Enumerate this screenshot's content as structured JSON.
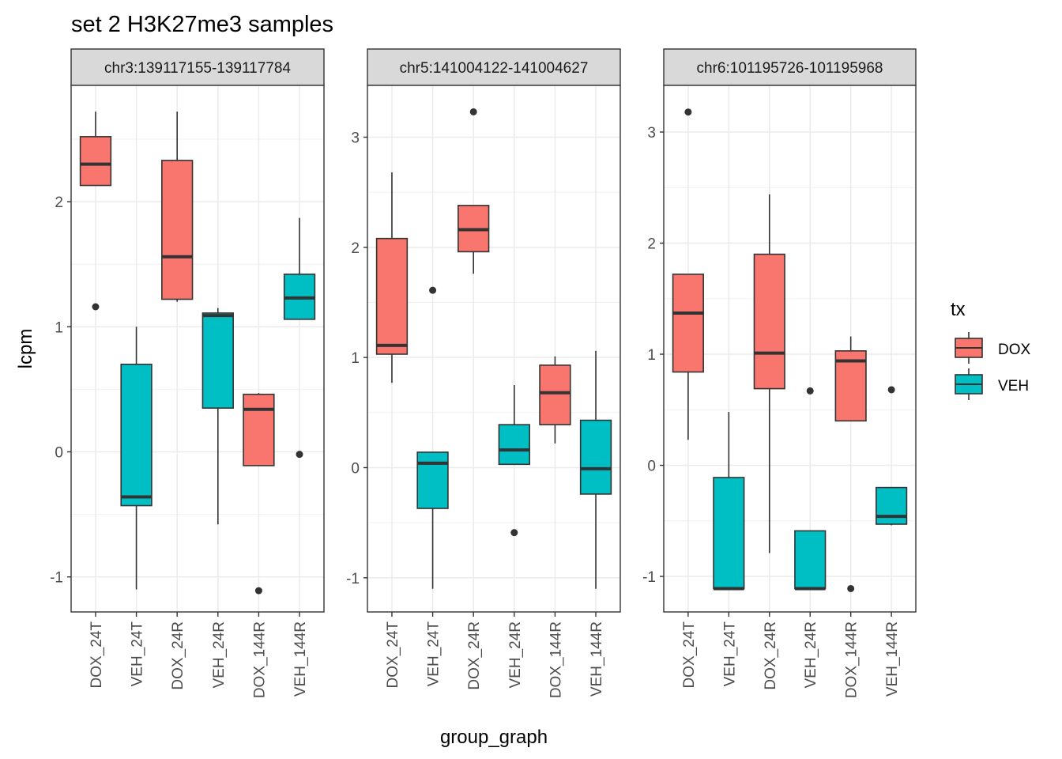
{
  "chart_data": {
    "type": "boxplot",
    "title": "set 2 H3K27me3 samples",
    "xlabel": "group_graph",
    "ylabel": "lcpm",
    "categories": [
      "DOX_24T",
      "VEH_24T",
      "DOX_24R",
      "VEH_24R",
      "DOX_144R",
      "VEH_144R"
    ],
    "fill_by": [
      "DOX",
      "VEH",
      "DOX",
      "VEH",
      "DOX",
      "VEH"
    ],
    "grid": true,
    "legend": {
      "title": "tx",
      "position": "right",
      "entries": [
        {
          "label": "DOX",
          "color": "#F8766D"
        },
        {
          "label": "VEH",
          "color": "#00BFC4"
        }
      ]
    },
    "panels": [
      {
        "strip": "chr3:139117155-139117784",
        "ylim": [
          -1.28,
          2.93
        ],
        "yticks": [
          -1,
          0,
          1,
          2
        ],
        "boxes": [
          {
            "group": "DOX_24T",
            "lower": 2.13,
            "q1": 2.13,
            "median": 2.3,
            "q3": 2.52,
            "upper": 2.72,
            "outliers": [
              1.16
            ]
          },
          {
            "group": "VEH_24T",
            "lower": -1.1,
            "q1": -0.43,
            "median": -0.36,
            "q3": 0.7,
            "upper": 1.0,
            "outliers": []
          },
          {
            "group": "DOX_24R",
            "lower": 1.2,
            "q1": 1.22,
            "median": 1.56,
            "q3": 2.33,
            "upper": 2.72,
            "outliers": []
          },
          {
            "group": "VEH_24R",
            "lower": -0.58,
            "q1": 0.35,
            "median": 1.09,
            "q3": 1.11,
            "upper": 1.15,
            "outliers": []
          },
          {
            "group": "DOX_144R",
            "lower": -0.11,
            "q1": -0.11,
            "median": 0.34,
            "q3": 0.46,
            "upper": 0.47,
            "outliers": [
              -1.11
            ]
          },
          {
            "group": "VEH_144R",
            "lower": 1.06,
            "q1": 1.06,
            "median": 1.23,
            "q3": 1.42,
            "upper": 1.87,
            "outliers": [
              -0.02
            ]
          }
        ]
      },
      {
        "strip": "chr5:141004122-141004627",
        "ylim": [
          -1.31,
          3.47
        ],
        "yticks": [
          -1,
          0,
          1,
          2,
          3
        ],
        "boxes": [
          {
            "group": "DOX_24T",
            "lower": 0.77,
            "q1": 1.03,
            "median": 1.11,
            "q3": 2.08,
            "upper": 2.68,
            "outliers": []
          },
          {
            "group": "VEH_24T",
            "lower": -1.1,
            "q1": -0.37,
            "median": 0.04,
            "q3": 0.14,
            "upper": 0.14,
            "outliers": [
              1.61
            ]
          },
          {
            "group": "DOX_24R",
            "lower": 1.76,
            "q1": 1.96,
            "median": 2.16,
            "q3": 2.38,
            "upper": 2.38,
            "outliers": [
              3.23
            ]
          },
          {
            "group": "VEH_24R",
            "lower": 0.03,
            "q1": 0.03,
            "median": 0.16,
            "q3": 0.39,
            "upper": 0.75,
            "outliers": [
              -0.59
            ]
          },
          {
            "group": "DOX_144R",
            "lower": 0.22,
            "q1": 0.39,
            "median": 0.68,
            "q3": 0.93,
            "upper": 1.01,
            "outliers": []
          },
          {
            "group": "VEH_144R",
            "lower": -1.1,
            "q1": -0.24,
            "median": -0.01,
            "q3": 0.43,
            "upper": 1.06,
            "outliers": []
          }
        ]
      },
      {
        "strip": "chr6:101195726-101195968",
        "ylim": [
          -1.32,
          3.42
        ],
        "yticks": [
          -1,
          0,
          1,
          2,
          3
        ],
        "boxes": [
          {
            "group": "DOX_24T",
            "lower": 0.23,
            "q1": 0.84,
            "median": 1.37,
            "q3": 1.72,
            "upper": 1.72,
            "outliers": [
              3.18
            ]
          },
          {
            "group": "VEH_24T",
            "lower": -1.11,
            "q1": -1.11,
            "median": -1.11,
            "q3": -0.11,
            "upper": 0.48,
            "outliers": []
          },
          {
            "group": "DOX_24R",
            "lower": -0.79,
            "q1": 0.69,
            "median": 1.01,
            "q3": 1.9,
            "upper": 2.44,
            "outliers": []
          },
          {
            "group": "VEH_24R",
            "lower": -1.11,
            "q1": -1.11,
            "median": -1.11,
            "q3": -0.59,
            "upper": -0.59,
            "outliers": [
              0.67
            ]
          },
          {
            "group": "DOX_144R",
            "lower": 0.4,
            "q1": 0.4,
            "median": 0.94,
            "q3": 1.03,
            "upper": 1.16,
            "outliers": [
              -1.11
            ]
          },
          {
            "group": "VEH_144R",
            "lower": -0.54,
            "q1": -0.53,
            "median": -0.46,
            "q3": -0.2,
            "upper": -0.2,
            "outliers": [
              0.68
            ]
          }
        ]
      }
    ]
  }
}
